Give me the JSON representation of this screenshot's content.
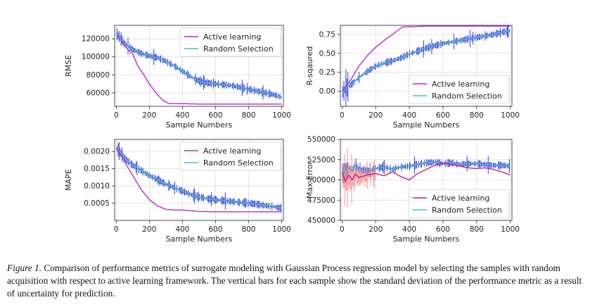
{
  "caption": {
    "label": "Figure 1.",
    "text": "Comparison of performance metrics of surrogate modeling with Gaussian Process regression model by selecting the samples with random acquisition with respect to active learning framework. The vertical bars for each sample show the standard deviation of the performance metric as a result of uncertainty for prediction."
  },
  "colors": {
    "active": "#c026c9",
    "random": "#3fbfcf",
    "error_bar_random": "#2b3de0",
    "error_bar_active": "#f08a8a",
    "active_dark": "#d1148a"
  },
  "chart_data": [
    {
      "id": "rmse",
      "type": "line",
      "xlabel": "Sample Numbers",
      "ylabel": "RMSE",
      "xlim": [
        -10,
        1010
      ],
      "ylim": [
        45000,
        135000
      ],
      "xticks": [
        0,
        200,
        400,
        600,
        800,
        1000
      ],
      "yticks": [
        60000,
        80000,
        100000,
        120000
      ],
      "ytick_labels": [
        "60000",
        "80000",
        "100000",
        "120000"
      ],
      "legend_position": "top-right",
      "grid": true,
      "series": [
        {
          "name": "Active learning",
          "key": "active",
          "x": [
            0,
            20,
            50,
            100,
            130,
            160,
            200,
            240,
            280,
            320,
            360,
            400,
            500,
            600,
            700,
            800,
            900,
            1000
          ],
          "y": [
            125000,
            120000,
            112000,
            103000,
            90000,
            82000,
            70000,
            60000,
            52000,
            48000,
            48000,
            48000,
            47500,
            47500,
            47500,
            47500,
            47500,
            47500
          ]
        },
        {
          "name": "Random Selection",
          "key": "random",
          "x": [
            0,
            20,
            50,
            100,
            150,
            200,
            250,
            300,
            350,
            400,
            450,
            500,
            550,
            600,
            650,
            700,
            750,
            800,
            850,
            900,
            950,
            1000
          ],
          "y": [
            126000,
            122000,
            115000,
            108000,
            104000,
            101000,
            99000,
            95000,
            90000,
            84000,
            78000,
            73000,
            71000,
            70000,
            69000,
            68000,
            66000,
            64000,
            62000,
            60000,
            58000,
            55000
          ]
        }
      ]
    },
    {
      "id": "r2",
      "type": "line",
      "xlabel": "Sample Numbers",
      "ylabel": "R-sqaured",
      "xlim": [
        -10,
        1010
      ],
      "ylim": [
        -0.2,
        0.87
      ],
      "xticks": [
        0,
        200,
        400,
        600,
        800,
        1000
      ],
      "yticks": [
        0.0,
        0.25,
        0.5,
        0.75
      ],
      "ytick_labels": [
        "0.00",
        "0.25",
        "0.50",
        "0.75"
      ],
      "legend_position": "lower-right",
      "grid": true,
      "series": [
        {
          "name": "Active learning",
          "key": "active",
          "x": [
            0,
            30,
            60,
            100,
            150,
            200,
            250,
            300,
            330,
            360,
            400,
            500,
            600,
            700,
            800,
            900,
            1000
          ],
          "y": [
            0.0,
            0.08,
            0.18,
            0.33,
            0.47,
            0.58,
            0.67,
            0.75,
            0.8,
            0.85,
            0.85,
            0.86,
            0.86,
            0.86,
            0.86,
            0.86,
            0.86
          ]
        },
        {
          "name": "Random Selection",
          "key": "random",
          "x": [
            0,
            30,
            60,
            100,
            150,
            200,
            250,
            300,
            350,
            400,
            450,
            500,
            550,
            600,
            650,
            700,
            750,
            800,
            850,
            900,
            950,
            1000
          ],
          "y": [
            -0.02,
            0.05,
            0.1,
            0.18,
            0.26,
            0.33,
            0.37,
            0.4,
            0.44,
            0.49,
            0.53,
            0.57,
            0.6,
            0.63,
            0.65,
            0.67,
            0.69,
            0.71,
            0.73,
            0.75,
            0.78,
            0.8
          ]
        }
      ]
    },
    {
      "id": "mape",
      "type": "line",
      "xlabel": "Sample Numbers",
      "ylabel": "MAPE",
      "xlim": [
        -10,
        1010
      ],
      "ylim": [
        0.0,
        0.00235
      ],
      "xticks": [
        0,
        200,
        400,
        600,
        800,
        1000
      ],
      "yticks": [
        0.0005,
        0.001,
        0.0015,
        0.002
      ],
      "ytick_labels": [
        "0.0005",
        "0.0010",
        "0.0015",
        "0.0020"
      ],
      "legend_position": "top-right",
      "grid": true,
      "series": [
        {
          "name": "Active learning",
          "key": "active",
          "x": [
            0,
            20,
            50,
            100,
            150,
            200,
            250,
            300,
            350,
            400,
            500,
            600,
            700,
            800,
            900,
            1000
          ],
          "y": [
            0.0021,
            0.00195,
            0.0017,
            0.0013,
            0.0009,
            0.0006,
            0.00042,
            0.00032,
            0.0003,
            0.0003,
            0.00026,
            0.00025,
            0.00025,
            0.00025,
            0.00025,
            0.00025
          ]
        },
        {
          "name": "Random Selection",
          "key": "random",
          "x": [
            0,
            20,
            50,
            100,
            150,
            200,
            250,
            300,
            350,
            400,
            450,
            500,
            550,
            600,
            650,
            700,
            750,
            800,
            850,
            900,
            950,
            1000
          ],
          "y": [
            0.0021,
            0.002,
            0.0018,
            0.0016,
            0.00145,
            0.0013,
            0.00118,
            0.00105,
            0.00095,
            0.00085,
            0.00075,
            0.00068,
            0.00063,
            0.0006,
            0.00057,
            0.00055,
            0.00052,
            0.0005,
            0.00047,
            0.00043,
            0.0004,
            0.00035
          ]
        }
      ]
    },
    {
      "id": "maxerr",
      "type": "line",
      "xlabel": "Sample Numbers",
      "ylabel": "Max Error",
      "xlim": [
        -10,
        1010
      ],
      "ylim": [
        450000,
        550000
      ],
      "xticks": [
        0,
        200,
        400,
        600,
        800,
        1000
      ],
      "yticks": [
        450000,
        475000,
        500000,
        525000,
        550000
      ],
      "ytick_labels": [
        "450000",
        "475000",
        "500000",
        "525000",
        "550000"
      ],
      "legend_position": "lower-right",
      "grid": true,
      "series": [
        {
          "name": "Active learning",
          "key": "active",
          "x": [
            0,
            20,
            40,
            60,
            80,
            100,
            150,
            200,
            250,
            300,
            350,
            400,
            450,
            500,
            550,
            600,
            650,
            700,
            750,
            800,
            850,
            900,
            950,
            1000
          ],
          "y": [
            510000,
            498000,
            506000,
            500000,
            507000,
            503000,
            506000,
            508000,
            505000,
            510000,
            504000,
            500000,
            508000,
            513000,
            518000,
            521000,
            519000,
            517000,
            515000,
            514000,
            515000,
            513000,
            510000,
            506000
          ]
        },
        {
          "name": "Random Selection",
          "key": "random",
          "x": [
            0,
            20,
            40,
            60,
            80,
            100,
            150,
            200,
            250,
            300,
            350,
            400,
            450,
            500,
            550,
            600,
            650,
            700,
            750,
            800,
            850,
            900,
            950,
            1000
          ],
          "y": [
            505000,
            510000,
            515000,
            512000,
            518000,
            513000,
            511000,
            514000,
            516000,
            513000,
            516000,
            517000,
            519000,
            521000,
            522000,
            520000,
            521000,
            519000,
            520000,
            520000,
            519000,
            518000,
            518000,
            517000
          ]
        }
      ]
    }
  ]
}
